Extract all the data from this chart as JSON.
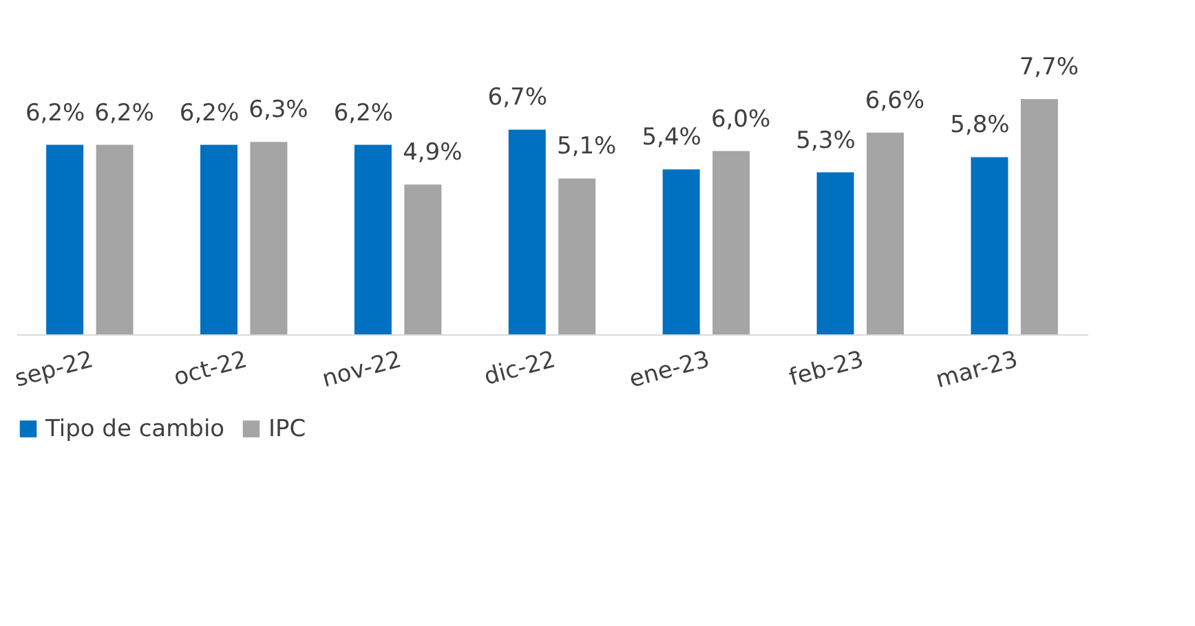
{
  "chart_data": {
    "type": "bar",
    "categories": [
      "sep-22",
      "oct-22",
      "nov-22",
      "dic-22",
      "ene-23",
      "feb-23",
      "mar-23"
    ],
    "series": [
      {
        "name": "Tipo de cambio",
        "color": "#0070c0",
        "values": [
          6.2,
          6.2,
          6.2,
          6.7,
          5.4,
          5.3,
          5.8
        ],
        "value_labels": [
          "6,2%",
          "6,2%",
          "6,2%",
          "6,7%",
          "5,4%",
          "5,3%",
          "5,8%"
        ]
      },
      {
        "name": "IPC",
        "color": "#a5a5a5",
        "values": [
          6.2,
          6.3,
          4.9,
          5.1,
          6.0,
          6.6,
          7.7
        ],
        "value_labels": [
          "6,2%",
          "6,3%",
          "4,9%",
          "5,1%",
          "6,0%",
          "6,6%",
          "7,7%"
        ]
      }
    ],
    "legend": "bottom",
    "grid": false
  }
}
